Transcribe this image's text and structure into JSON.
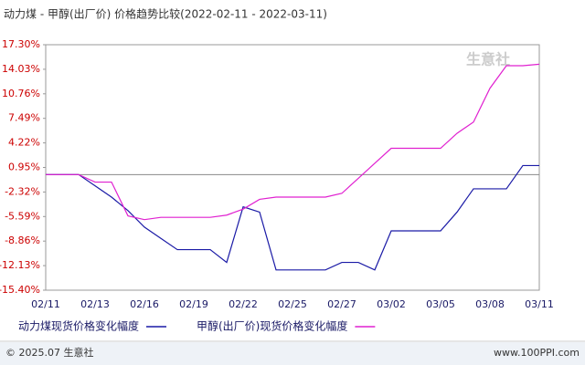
{
  "chart_data": {
    "type": "line",
    "title": "动力煤 - 甲醇(出厂价) 价格趋势比较(2022-02-11 - 2022-03-11)",
    "categories": [
      "02/11",
      null,
      null,
      "02/13",
      null,
      null,
      "02/16",
      null,
      null,
      "02/19",
      null,
      null,
      "02/22",
      null,
      null,
      "02/25",
      null,
      null,
      "02/27",
      null,
      null,
      "03/02",
      null,
      null,
      "03/05",
      null,
      null,
      "03/08",
      null,
      null,
      "03/11"
    ],
    "series": [
      {
        "name": "动力煤现货价格变化幅度",
        "color": "#1a1aa6",
        "values": [
          0,
          0,
          0,
          -1.5,
          -3,
          -4.8,
          -7,
          -8.5,
          -10,
          -10,
          -10,
          -11.7,
          -4.3,
          -5,
          -12.7,
          -12.7,
          -12.7,
          -12.7,
          -11.7,
          -11.7,
          -12.7,
          -7.5,
          -7.5,
          -7.5,
          -7.5,
          -5,
          -1.9,
          -1.9,
          -1.9,
          1.2,
          1.2
        ]
      },
      {
        "name": "甲醇(出厂价)现货价格变化幅度",
        "color": "#e020d0",
        "values": [
          0,
          0,
          0,
          -1,
          -1,
          -5.5,
          -6,
          -5.7,
          -5.7,
          -5.7,
          -5.7,
          -5.4,
          -4.6,
          -3.3,
          -3,
          -3,
          -3,
          -3,
          -2.5,
          -0.5,
          1.5,
          3.5,
          3.5,
          3.5,
          3.5,
          5.5,
          7,
          11.5,
          14.5,
          14.5,
          14.7
        ]
      }
    ],
    "ylim": [
      -15.4,
      17.3
    ],
    "yticks": [
      {
        "value": -15.4,
        "label": "-15.40%"
      },
      {
        "value": -12.13,
        "label": "-12.13%"
      },
      {
        "value": -8.86,
        "label": "-8.86%"
      },
      {
        "value": -5.59,
        "label": "-5.59%"
      },
      {
        "value": -2.32,
        "label": "-2.32%"
      },
      {
        "value": 0.95,
        "label": "0.95%"
      },
      {
        "value": 4.22,
        "label": "4.22%"
      },
      {
        "value": 7.49,
        "label": "7.49%"
      },
      {
        "value": 10.76,
        "label": "10.76%"
      },
      {
        "value": 14.03,
        "label": "14.03%"
      },
      {
        "value": 17.3,
        "label": "17.30%"
      }
    ],
    "watermark": "生意社",
    "footer_left": "© 2025.07 生意社",
    "footer_right": "www.100PPI.com"
  }
}
